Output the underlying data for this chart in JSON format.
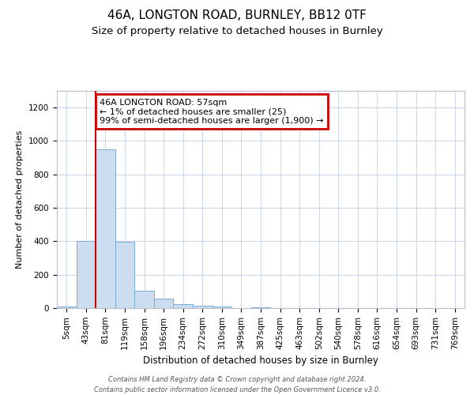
{
  "title1": "46A, LONGTON ROAD, BURNLEY, BB12 0TF",
  "title2": "Size of property relative to detached houses in Burnley",
  "xlabel": "Distribution of detached houses by size in Burnley",
  "ylabel": "Number of detached properties",
  "categories": [
    "5sqm",
    "43sqm",
    "81sqm",
    "119sqm",
    "158sqm",
    "196sqm",
    "234sqm",
    "272sqm",
    "310sqm",
    "349sqm",
    "387sqm",
    "425sqm",
    "463sqm",
    "502sqm",
    "540sqm",
    "578sqm",
    "616sqm",
    "654sqm",
    "693sqm",
    "731sqm",
    "769sqm"
  ],
  "values": [
    10,
    400,
    950,
    395,
    105,
    55,
    25,
    15,
    10,
    0,
    5,
    0,
    0,
    0,
    0,
    0,
    0,
    0,
    0,
    0,
    0
  ],
  "bar_color": "#ccddf0",
  "bar_edge_color": "#7aadd4",
  "vline_x": 1.5,
  "vline_color": "#cc0000",
  "annotation_text": "46A LONGTON ROAD: 57sqm\n← 1% of detached houses are smaller (25)\n99% of semi-detached houses are larger (1,900) →",
  "annotation_box_color": "#cc0000",
  "ylim": [
    0,
    1300
  ],
  "yticks": [
    0,
    200,
    400,
    600,
    800,
    1000,
    1200
  ],
  "footer1": "Contains HM Land Registry data © Crown copyright and database right 2024.",
  "footer2": "Contains public sector information licensed under the Open Government Licence v3.0.",
  "background_color": "#ffffff",
  "grid_color": "#ccd8ee",
  "title1_fontsize": 11,
  "title2_fontsize": 9.5,
  "ylabel_fontsize": 8,
  "xlabel_fontsize": 8.5,
  "tick_fontsize": 7.5,
  "footer_fontsize": 6,
  "ann_fontsize": 8
}
